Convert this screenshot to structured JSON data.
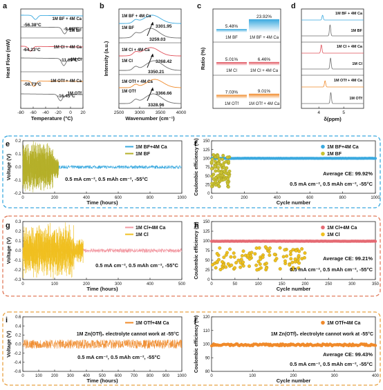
{
  "chart_data": [
    {
      "panel": "a",
      "type": "line",
      "xlabel": "Temperature (°C)",
      "ylabel": "Heat Flow (mW)",
      "xlim": [
        -80,
        20
      ],
      "xticks": [
        -80,
        -60,
        -40,
        -20,
        0,
        20
      ],
      "series": [
        {
          "name": "1M BF + 4M Ca",
          "color": "#3aa9df",
          "peak_x": -56.38,
          "peak_label": "-56.38°C"
        },
        {
          "name": "1M BF",
          "color": "#6e6e6e",
          "peak_x": -9.86,
          "peak_label": "-9.86°C"
        },
        {
          "name": "1M Cl + 4M Ca",
          "color": "#e0505a",
          "peak_x": -64.23,
          "peak_label": "-64.23°C"
        },
        {
          "name": "1M Cl",
          "color": "#6e6e6e",
          "peak_x": -11.09,
          "peak_label": "-11.09°C"
        },
        {
          "name": "1M OTf + 4M Ca",
          "color": "#f08a2a",
          "peak_x": -58.73,
          "peak_label": "-58.73°C"
        },
        {
          "name": "1M OTf",
          "color": "#6e6e6e",
          "peak_x": -16.45,
          "peak_label": "-16.45°C"
        }
      ]
    },
    {
      "panel": "b",
      "type": "line",
      "xlabel": "Wavenumber (cm⁻¹)",
      "ylabel": "Intensity (a.u.)",
      "xlim": [
        2500,
        4000
      ],
      "xticks": [
        2500,
        3000,
        3500,
        4000
      ],
      "series": [
        {
          "name": "1M BF + 4M Ca",
          "color": "#3aa9df",
          "peak_x": 3301.95,
          "peak_label": "3301.95"
        },
        {
          "name": "1M BF",
          "color": "#6e6e6e",
          "peak_x": 3259.03,
          "peak_label": "3259.03"
        },
        {
          "name": "1M Cl + 4M Ca",
          "color": "#e0505a",
          "peak_x": 3268.42,
          "peak_label": "3268.42"
        },
        {
          "name": "1M Cl",
          "color": "#6e6e6e",
          "peak_x": 3350.21,
          "peak_label": "3350.21"
        },
        {
          "name": "1M OTf + 4M Ca",
          "color": "#f08a2a",
          "peak_x": 3366.66,
          "peak_label": "3366.66"
        },
        {
          "name": "1M OTf",
          "color": "#6e6e6e",
          "peak_x": 3328.96,
          "peak_label": "3328.96"
        }
      ]
    },
    {
      "panel": "c",
      "type": "bar",
      "ylabel": "Ratio (%)",
      "groups": [
        {
          "categories": [
            "1M BF",
            "1M BF + 4M Ca"
          ],
          "values": [
            5.48,
            23.92
          ],
          "labels": [
            "5.48%",
            "23.92%"
          ],
          "color": "#3aa9df"
        },
        {
          "categories": [
            "1M Cl",
            "1M Cl + 4M Ca"
          ],
          "values": [
            5.01,
            6.46
          ],
          "labels": [
            "5.01%",
            "6.46%"
          ],
          "color": "#e0505a"
        },
        {
          "categories": [
            "1M OTf",
            "1M OTf + 4M Ca"
          ],
          "values": [
            7.03,
            9.01
          ],
          "labels": [
            "7.03%",
            "9.01%"
          ],
          "color": "#f08a2a"
        }
      ]
    },
    {
      "panel": "d",
      "type": "line",
      "xlabel": "δ(ppm)",
      "ylabel": "",
      "xticks": [
        4,
        5
      ],
      "xlim": [
        3.3,
        5.8
      ],
      "series": [
        {
          "name": "1M BF + 4M Ca",
          "color": "#3aa9df",
          "peak_x": 4.15
        },
        {
          "name": "1M BF",
          "color": "#6e6e6e",
          "peak_x": 4.45
        },
        {
          "name": "1M Cl + 4M Ca",
          "color": "#e0505a",
          "peak_x": 4.1
        },
        {
          "name": "1M Cl",
          "color": "#6e6e6e",
          "peak_x": 4.47
        },
        {
          "name": "1M OTf + 4M Ca",
          "color": "#f08a2a",
          "peak_x": 4.25
        },
        {
          "name": "1M OTf",
          "color": "#6e6e6e",
          "peak_x": 4.48
        }
      ]
    },
    {
      "panel": "e",
      "type": "line",
      "xlabel": "Time (hours)",
      "ylabel": "Voltage (V)",
      "xlim": [
        0,
        1000
      ],
      "ylim": [
        -0.2,
        0.2
      ],
      "xticks": [
        0,
        200,
        400,
        600,
        800,
        1000
      ],
      "yticks": [
        -0.2,
        -0.1,
        0.0,
        0.1,
        0.2
      ],
      "annotation": "0.5 mA cm⁻², 0.5 mAh cm⁻², -55°C",
      "series": [
        {
          "name": "1M BF+4M Ca",
          "color": "#3aa9df",
          "x_range": [
            0,
            1000
          ],
          "amplitude": 0.012
        },
        {
          "name": "1M BF",
          "color": "#b5b02a",
          "x_range": [
            0,
            225
          ],
          "amplitude": 0.2
        }
      ]
    },
    {
      "panel": "f",
      "type": "scatter",
      "xlabel": "Cycle number",
      "ylabel": "Coulombic efficiency (%)",
      "xlim": [
        0,
        1000
      ],
      "ylim": [
        0,
        150
      ],
      "xticks": [
        0,
        200,
        400,
        600,
        800,
        1000
      ],
      "yticks": [
        0,
        25,
        50,
        75,
        100,
        125,
        150
      ],
      "average_text": "Average CE: 99.92%",
      "annotation": "0.5 mA cm⁻², 0.5 mAh cm⁻², -55°C",
      "series": [
        {
          "name": "1M BF+4M Ca",
          "color": "#3aa9df",
          "x_range": [
            0,
            1000
          ],
          "y": 99.92
        },
        {
          "name": "1M BF",
          "color": "#c9c232",
          "x_range": [
            0,
            110
          ],
          "y_range": [
            18,
            110
          ]
        }
      ]
    },
    {
      "panel": "g",
      "type": "line",
      "xlabel": "Time (hours)",
      "ylabel": "Voltage (V)",
      "xlim": [
        0,
        500
      ],
      "ylim": [
        -0.3,
        0.3
      ],
      "xticks": [
        0,
        100,
        200,
        300,
        400,
        500
      ],
      "yticks": [
        -0.3,
        -0.2,
        -0.1,
        0.0,
        0.1,
        0.2,
        0.3
      ],
      "annotation": "0.5 mA cm⁻², 0.5 mAh cm⁻², -55°C",
      "series": [
        {
          "name": "1M Cl+4M Ca",
          "color": "#f29aa3",
          "x_range": [
            0,
            500
          ],
          "amplitude": 0.02
        },
        {
          "name": "1M Cl",
          "color": "#f0c020",
          "x_range": [
            0,
            190
          ],
          "amplitude": 0.3
        }
      ]
    },
    {
      "panel": "h",
      "type": "scatter",
      "xlabel": "Cycle number",
      "ylabel": "Coulombic efficiency (%)",
      "xlim": [
        0,
        350
      ],
      "ylim": [
        0,
        150
      ],
      "xticks": [
        0,
        50,
        100,
        150,
        200,
        250,
        300,
        350
      ],
      "yticks": [
        0,
        25,
        50,
        75,
        100,
        125,
        150
      ],
      "average_text": "Average CE: 99.21%",
      "annotation": "0.5 mA cm⁻², 0.5 mAh cm⁻², -55°C",
      "series": [
        {
          "name": "1M Cl+4M Ca",
          "color": "#e56a73",
          "x_range": [
            0,
            350
          ],
          "y": 99.21
        },
        {
          "name": "1M Cl",
          "color": "#f0c020",
          "x_range": [
            0,
            200
          ],
          "y_range": [
            25,
            85
          ]
        }
      ]
    },
    {
      "panel": "i",
      "type": "line",
      "xlabel": "Time (hours)",
      "ylabel": "Voltage (V)",
      "xlim": [
        0,
        1000
      ],
      "ylim": [
        -0.6,
        0.6
      ],
      "xticks": [
        0,
        100,
        200,
        300,
        400,
        500,
        600,
        700,
        800,
        900,
        1000
      ],
      "yticks": [
        -0.6,
        -0.4,
        -0.2,
        0.0,
        0.2,
        0.4,
        0.6
      ],
      "note": "1M Zn(OTf)₂ electrolyte cannot work at -55°C",
      "annotation": "0.5 mA cm⁻², 0.5 mAh cm⁻², -55°C",
      "series": [
        {
          "name": "1M OTf+4M Ca",
          "color": "#f08a2a",
          "x_range": [
            0,
            1000
          ],
          "amplitude": 0.1
        }
      ]
    },
    {
      "panel": "j",
      "type": "scatter",
      "xlabel": "Cycle number",
      "ylabel": "Coulombic efficiency (%)",
      "xlim": [
        0,
        400
      ],
      "ylim": [
        80,
        120
      ],
      "xticks": [
        0,
        100,
        200,
        300,
        400
      ],
      "yticks": [
        80,
        90,
        100,
        110,
        120
      ],
      "note": "1M Zn(OTf)₂ electrolyte cannot work at -55°C",
      "average_text": "Average CE: 99.43%",
      "annotation": "0.5 mA cm⁻², 0.5 mAh cm⁻², -55°C",
      "series": [
        {
          "name": "1M OTf+4M Ca",
          "color": "#f08a2a",
          "x_range": [
            0,
            400
          ],
          "y": 99.43
        }
      ]
    }
  ],
  "colors": {
    "bf": "#3aa9df",
    "cl": "#e0505a",
    "otf": "#f08a2a",
    "ref": "#6e6e6e",
    "box_blue": "#3aa9df",
    "box_red": "#e07a5a",
    "box_orange": "#e8a040"
  }
}
